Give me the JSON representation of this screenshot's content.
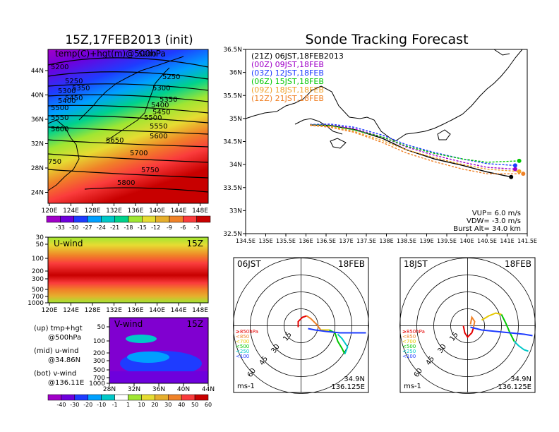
{
  "headings": {
    "left_title": "15Z,17FEB2013 (init)",
    "right_title": "Sonde Tracking Forecast"
  },
  "left_map": {
    "label": "temp(C)+hgt(m)@500hPa",
    "lat_ticks": [
      "44N",
      "40N",
      "36N",
      "32N",
      "28N",
      "24N"
    ],
    "lon_ticks": [
      "120E",
      "124E",
      "128E",
      "132E",
      "136E",
      "140E",
      "144E",
      "148E"
    ],
    "contour_labels": [
      "5200",
      "5250",
      "5300",
      "5350",
      "5400",
      "5450",
      "5500",
      "5550",
      "5600",
      "5650",
      "5700",
      "5750",
      "5800",
      "750",
      "5250",
      "5300",
      "5350",
      "5400",
      "5450",
      "5500",
      "5550",
      "5600",
      "5200"
    ],
    "colorbar_ticks": [
      "-33",
      "-30",
      "-27",
      "-24",
      "-21",
      "-18",
      "-15",
      "-12",
      "-9",
      "-6",
      "-3"
    ],
    "colorbar_colors": [
      "#a000c8",
      "#6e00dc",
      "#1e3cff",
      "#00a0ff",
      "#00c8c8",
      "#00d28c",
      "#a0e632",
      "#e6dc32",
      "#e6af2d",
      "#f08228",
      "#fa3c3c",
      "#c80000"
    ]
  },
  "uwind": {
    "label": "U-wind",
    "time": "15Z",
    "p_ticks": [
      "30",
      "50",
      "100",
      "200",
      "300",
      "500",
      "700",
      "1000"
    ],
    "lon_ticks": [
      "120E",
      "124E",
      "128E",
      "132E",
      "136E",
      "140E",
      "144E",
      "148E"
    ]
  },
  "vwind": {
    "label": "V-wind",
    "time": "15Z",
    "p_ticks": [
      "50",
      "100",
      "200",
      "300",
      "500",
      "700",
      "1000"
    ],
    "lat_ticks": [
      "28N",
      "32N",
      "36N",
      "40N",
      "44N"
    ]
  },
  "wind_colorbar": {
    "ticks": [
      "-40",
      "-30",
      "-20",
      "-10",
      "-1",
      "1",
      "10",
      "20",
      "30",
      "40",
      "50",
      "60"
    ],
    "colors": [
      "#a000c8",
      "#6e00dc",
      "#1e3cff",
      "#00a0ff",
      "#00c8c8",
      "#ffffff",
      "#a0e632",
      "#e6dc32",
      "#e6af2d",
      "#f08228",
      "#fa3c3c",
      "#c80000"
    ]
  },
  "left_notes": [
    {
      "l1": "(up) tmp+hgt",
      "l2": "@500hPa"
    },
    {
      "l1": "(mid) u-wind",
      "l2": "@34.86N"
    },
    {
      "l1": "(bot) v-wind",
      "l2": "@136.11E"
    }
  ],
  "track_map": {
    "lat_ticks": [
      "36.5N",
      "36N",
      "35.5N",
      "35N",
      "34.5N",
      "34N",
      "33.5N",
      "33N",
      "32.5N"
    ],
    "lon_ticks": [
      "134.5E",
      "135E",
      "135.5E",
      "136E",
      "136.5E",
      "137E",
      "137.5E",
      "138E",
      "138.5E",
      "139E",
      "139.5E",
      "140E",
      "140.5E",
      "141E",
      "141.5E"
    ],
    "legend": [
      {
        "text": "(21Z)  06JST,18FEB2013",
        "color": "#000000"
      },
      {
        "text": "(00Z)  09JST,18FEB",
        "color": "#a000c8"
      },
      {
        "text": "(03Z)  12JST,18FEB",
        "color": "#1e3cff"
      },
      {
        "text": "(06Z)  15JST,18FEB",
        "color": "#00c800"
      },
      {
        "text": "(09Z)  18JST,18FEB",
        "color": "#f0a028"
      },
      {
        "text": "(12Z)  21JST,18FEB",
        "color": "#f08228"
      }
    ],
    "params": [
      "VUP=  6.0  m/s",
      "VDW= -3.0  m/s",
      "Burst Alt= 34.0  km"
    ]
  },
  "hodo_left": {
    "time": "06JST",
    "date": "18FEB",
    "rings": [
      "15",
      "30",
      "45",
      "60"
    ],
    "legend": [
      "≥850hPa",
      "<850",
      "<700",
      "<500",
      "<250",
      "<100"
    ],
    "units": "ms-1",
    "loc_lat": "34.9N",
    "loc_lon": "136.125E"
  },
  "hodo_right": {
    "time": "18JST",
    "date": "18FEB",
    "rings": [
      "15",
      "30",
      "45",
      "60"
    ],
    "legend": [
      "≥850hPa",
      "<850",
      "<700",
      "<500",
      "<250",
      "<100"
    ],
    "units": "ms-1",
    "loc_lat": "34.9N",
    "loc_lon": "136.125E"
  },
  "hodo_legend_colors": [
    "#e60000",
    "#f08228",
    "#e6c800",
    "#00c800",
    "#00c8c8",
    "#1e3cff"
  ],
  "chart_data": {
    "type": "line",
    "title": "Sonde Tracking Forecast",
    "xlim": [
      134.5,
      141.5
    ],
    "ylim": [
      32.5,
      36.5
    ],
    "series": [
      {
        "name": "(21Z)  06JST,18FEB2013",
        "x": [
          136.1,
          136.6,
          137.2,
          137.9,
          138.5,
          139.2,
          139.9,
          140.5,
          141.1
        ],
        "y": [
          34.86,
          34.85,
          34.76,
          34.57,
          34.32,
          34.12,
          33.98,
          33.84,
          33.73
        ]
      },
      {
        "name": "(00Z)  09JST,18FEB",
        "x": [
          136.1,
          136.6,
          137.2,
          137.9,
          138.5,
          139.2,
          139.9,
          140.5,
          141.2
        ],
        "y": [
          34.87,
          34.86,
          34.78,
          34.6,
          34.38,
          34.2,
          34.05,
          33.94,
          33.9
        ]
      },
      {
        "name": "(03Z)  12JST,18FEB",
        "x": [
          136.1,
          136.6,
          137.2,
          137.9,
          138.5,
          139.2,
          139.9,
          140.5,
          141.2
        ],
        "y": [
          34.87,
          34.88,
          34.81,
          34.64,
          34.43,
          34.26,
          34.12,
          34.02,
          33.98
        ]
      },
      {
        "name": "(06Z)  15JST,18FEB",
        "x": [
          136.1,
          136.6,
          137.2,
          137.9,
          138.5,
          139.2,
          139.9,
          140.5,
          141.3
        ],
        "y": [
          34.86,
          34.85,
          34.75,
          34.6,
          34.4,
          34.24,
          34.12,
          34.05,
          34.08
        ]
      },
      {
        "name": "(09Z)  18JST,18FEB",
        "x": [
          136.1,
          136.6,
          137.2,
          137.9,
          138.5,
          139.2,
          139.9,
          140.5,
          141.3
        ],
        "y": [
          34.86,
          34.83,
          34.72,
          34.52,
          34.32,
          34.15,
          34.0,
          33.9,
          33.85
        ]
      },
      {
        "name": "(12Z)  21JST,18FEB",
        "x": [
          136.1,
          136.6,
          137.2,
          137.9,
          138.5,
          139.2,
          139.9,
          140.5,
          141.4
        ],
        "y": [
          34.85,
          34.81,
          34.7,
          34.48,
          34.25,
          34.06,
          33.9,
          33.8,
          33.8
        ]
      }
    ]
  }
}
